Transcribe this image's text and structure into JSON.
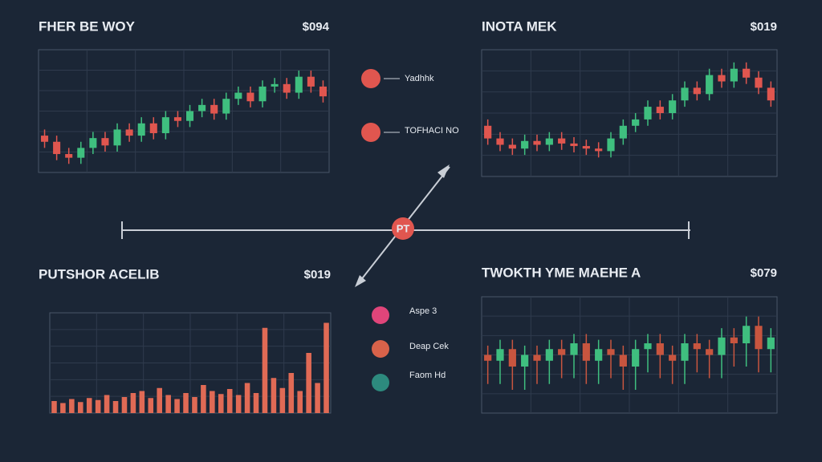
{
  "chart_data": [
    {
      "type": "candlestick",
      "title": "FHER BE WOY",
      "price": "$094",
      "ylim": [
        0,
        100
      ],
      "up_color": "#3fbf7f",
      "down_color": "#e0564f",
      "open": [
        30,
        25,
        15,
        12,
        20,
        28,
        22,
        35,
        30,
        40,
        32,
        45,
        42,
        50,
        55,
        48,
        60,
        65,
        58,
        70,
        72,
        65,
        78,
        70
      ],
      "close": [
        25,
        15,
        12,
        20,
        28,
        22,
        35,
        30,
        40,
        32,
        45,
        42,
        50,
        55,
        48,
        60,
        65,
        58,
        70,
        72,
        65,
        78,
        70,
        62
      ],
      "high": [
        35,
        30,
        20,
        25,
        33,
        33,
        40,
        40,
        45,
        45,
        50,
        50,
        55,
        60,
        60,
        65,
        70,
        70,
        75,
        77,
        77,
        83,
        83,
        75
      ],
      "low": [
        20,
        10,
        7,
        7,
        15,
        17,
        17,
        25,
        25,
        27,
        27,
        37,
        37,
        45,
        43,
        43,
        55,
        53,
        53,
        65,
        60,
        60,
        65,
        57
      ]
    },
    {
      "type": "candlestick",
      "title": "INOTA MEK",
      "price": "$019",
      "ylim": [
        0,
        100
      ],
      "up_color": "#3fbf7f",
      "down_color": "#e0564f",
      "open": [
        40,
        30,
        25,
        22,
        28,
        25,
        30,
        26,
        24,
        22,
        20,
        30,
        40,
        45,
        55,
        50,
        60,
        70,
        65,
        80,
        75,
        85,
        78,
        70
      ],
      "close": [
        30,
        25,
        22,
        28,
        25,
        30,
        26,
        24,
        22,
        20,
        30,
        40,
        45,
        55,
        50,
        60,
        70,
        65,
        80,
        75,
        85,
        78,
        70,
        60
      ],
      "high": [
        45,
        35,
        30,
        33,
        33,
        35,
        35,
        31,
        29,
        27,
        35,
        45,
        50,
        60,
        60,
        65,
        75,
        75,
        85,
        85,
        90,
        90,
        83,
        75
      ],
      "low": [
        25,
        20,
        17,
        17,
        20,
        20,
        21,
        19,
        17,
        15,
        15,
        25,
        35,
        40,
        45,
        45,
        55,
        60,
        60,
        70,
        70,
        73,
        65,
        55
      ]
    },
    {
      "type": "bar",
      "title": "PUTSHOR ACELIB",
      "price": "$019",
      "ylim": [
        0,
        100
      ],
      "color": "#e06a55",
      "values": [
        12,
        10,
        14,
        11,
        15,
        13,
        18,
        12,
        16,
        20,
        22,
        15,
        25,
        18,
        14,
        20,
        16,
        28,
        22,
        19,
        24,
        18,
        30,
        20,
        85,
        35,
        25,
        40,
        22,
        60,
        30,
        90
      ]
    },
    {
      "type": "candlestick",
      "title": "TWOKTH YME MAEHE A",
      "price": "$079",
      "ylim": [
        0,
        100
      ],
      "up_color": "#3fbf7f",
      "down_color": "#c8553f",
      "open": [
        50,
        45,
        55,
        40,
        50,
        45,
        55,
        50,
        60,
        45,
        55,
        50,
        40,
        55,
        60,
        50,
        45,
        60,
        55,
        50,
        65,
        60,
        75,
        55
      ],
      "close": [
        45,
        55,
        40,
        50,
        45,
        55,
        50,
        60,
        45,
        55,
        50,
        40,
        55,
        60,
        50,
        45,
        60,
        55,
        50,
        65,
        60,
        75,
        55,
        65
      ],
      "high": [
        58,
        63,
        63,
        58,
        58,
        63,
        63,
        68,
        68,
        63,
        63,
        58,
        63,
        68,
        68,
        58,
        68,
        68,
        63,
        73,
        73,
        83,
        83,
        73
      ],
      "low": [
        25,
        25,
        20,
        20,
        25,
        25,
        30,
        30,
        25,
        25,
        30,
        20,
        20,
        35,
        30,
        25,
        25,
        35,
        30,
        30,
        40,
        40,
        35,
        35
      ]
    }
  ],
  "hub": {
    "label": "PT"
  },
  "legend_top": [
    "Yadhhk",
    "TOFHACI NO"
  ],
  "legend_bottom": [
    "Aspe 3",
    "Deap Cek",
    "Faom Hd"
  ]
}
